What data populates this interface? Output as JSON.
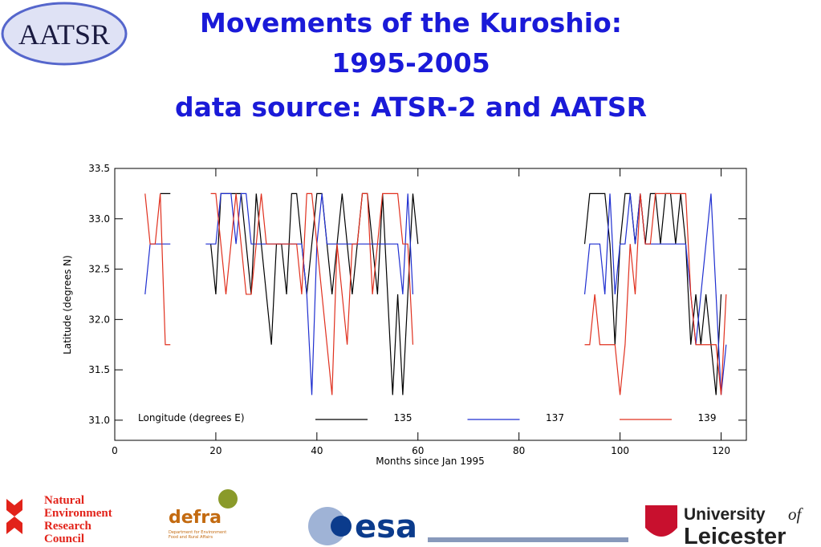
{
  "header": {
    "title": [
      "Movements of the Kuroshio:",
      "1995-2005",
      "data source: ATSR-2 and AATSR"
    ]
  },
  "logos": {
    "aatsr": "AATSR",
    "nerc": [
      "Natural",
      "Environment",
      "Research",
      "Council"
    ],
    "defra": "defra",
    "defra_sub": [
      "Department for Environment",
      "Food and Rural Affairs"
    ],
    "esa": "esa",
    "leicester": [
      "University",
      "of",
      "Leicester"
    ]
  },
  "chart_data": {
    "type": "line",
    "xlabel": "Months since Jan 1995",
    "ylabel": "Latitude (degrees N)",
    "legend_title": "Longitude (degrees E)",
    "x": [
      6,
      7,
      8,
      9,
      10,
      11,
      12,
      13,
      14,
      15,
      16,
      17,
      18,
      19,
      20,
      21,
      22,
      23,
      24,
      25,
      26,
      27,
      28,
      29,
      30,
      31,
      32,
      33,
      34,
      35,
      36,
      37,
      38,
      39,
      40,
      41,
      42,
      43,
      44,
      45,
      46,
      47,
      48,
      49,
      50,
      51,
      52,
      53,
      54,
      55,
      56,
      57,
      58,
      59,
      60,
      61,
      93,
      94,
      95,
      96,
      97,
      98,
      99,
      100,
      101,
      102,
      103,
      104,
      105,
      106,
      107,
      108,
      109,
      110,
      111,
      112,
      113,
      114,
      115,
      116,
      117,
      118,
      119,
      120,
      121
    ],
    "xlim": [
      0,
      125
    ],
    "xticks": [
      0,
      20,
      40,
      60,
      80,
      100,
      120
    ],
    "ylim": [
      30.8,
      33.5
    ],
    "yticks": [
      {
        "value": 31.0,
        "label": "31.0"
      },
      {
        "value": 31.5,
        "label": "31.5"
      },
      {
        "value": 32.0,
        "label": "32.0"
      },
      {
        "value": 32.5,
        "label": "32.5"
      },
      {
        "value": 33.0,
        "label": "33.0"
      },
      {
        "value": 33.5,
        "label": "33.5"
      }
    ],
    "series": [
      {
        "name": "135",
        "color": "#000000",
        "values": [
          null,
          null,
          null,
          33.25,
          33.25,
          33.25,
          null,
          null,
          null,
          null,
          null,
          null,
          null,
          32.75,
          32.25,
          33.25,
          33.25,
          33.25,
          33.25,
          33.25,
          32.75,
          32.25,
          33.25,
          32.75,
          32.25,
          31.75,
          32.75,
          32.75,
          32.25,
          33.25,
          33.25,
          32.75,
          32.25,
          32.75,
          33.25,
          33.25,
          32.75,
          32.25,
          32.75,
          33.25,
          32.75,
          32.25,
          32.75,
          33.25,
          33.25,
          32.75,
          32.25,
          33.25,
          32.25,
          31.25,
          32.25,
          31.25,
          32.25,
          33.25,
          32.75,
          null,
          32.75,
          33.25,
          33.25,
          33.25,
          33.25,
          32.75,
          31.75,
          32.75,
          33.25,
          33.25,
          32.75,
          33.25,
          32.75,
          33.25,
          33.25,
          32.75,
          33.25,
          33.25,
          32.75,
          33.25,
          32.75,
          31.75,
          32.25,
          31.75,
          32.25,
          31.75,
          31.25,
          32.25,
          null
        ]
      },
      {
        "name": "137",
        "color": "#1f2fd0",
        "values": [
          32.25,
          32.75,
          32.75,
          32.75,
          32.75,
          32.75,
          null,
          null,
          null,
          null,
          null,
          null,
          32.75,
          32.75,
          32.75,
          33.25,
          33.25,
          33.25,
          32.75,
          33.25,
          33.25,
          32.75,
          32.75,
          32.75,
          32.75,
          32.75,
          32.75,
          32.75,
          32.75,
          32.75,
          32.75,
          32.75,
          32.25,
          31.25,
          32.75,
          33.25,
          32.75,
          32.75,
          32.75,
          32.75,
          32.75,
          32.75,
          32.75,
          32.75,
          32.75,
          32.75,
          32.75,
          32.75,
          32.75,
          32.75,
          32.75,
          32.25,
          33.25,
          32.25,
          null,
          null,
          32.25,
          32.75,
          32.75,
          32.75,
          32.25,
          33.25,
          32.25,
          32.75,
          32.75,
          33.25,
          32.75,
          33.25,
          32.75,
          32.75,
          32.75,
          32.75,
          32.75,
          32.75,
          32.75,
          32.75,
          32.75,
          32.25,
          31.75,
          32.25,
          32.75,
          33.25,
          32.25,
          31.25,
          31.75
        ]
      },
      {
        "name": "139",
        "color": "#e0301e",
        "values": [
          33.25,
          32.75,
          32.75,
          33.25,
          31.75,
          31.75,
          null,
          null,
          null,
          null,
          null,
          null,
          null,
          33.25,
          33.25,
          32.75,
          32.25,
          32.75,
          33.25,
          32.75,
          32.25,
          32.25,
          32.75,
          33.25,
          32.75,
          32.75,
          32.75,
          32.75,
          32.75,
          32.75,
          32.75,
          32.25,
          33.25,
          33.25,
          32.75,
          32.25,
          31.75,
          31.25,
          32.75,
          32.25,
          31.75,
          32.75,
          32.75,
          33.25,
          33.25,
          32.25,
          32.75,
          33.25,
          33.25,
          33.25,
          33.25,
          32.75,
          32.75,
          31.75,
          null,
          null,
          31.75,
          31.75,
          32.25,
          31.75,
          31.75,
          31.75,
          31.75,
          31.25,
          31.75,
          32.75,
          32.25,
          33.25,
          32.75,
          32.75,
          33.25,
          33.25,
          33.25,
          33.25,
          33.25,
          33.25,
          33.25,
          32.25,
          31.75,
          31.75,
          31.75,
          31.75,
          31.75,
          31.25,
          32.25
        ]
      }
    ]
  }
}
